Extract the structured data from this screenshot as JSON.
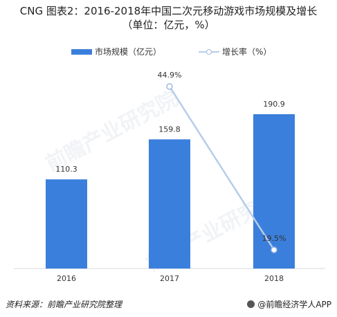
{
  "header": {
    "title": "CNG 图表2：2016-2018年中国二次元移动游戏市场规模及增长",
    "subtitle": "（单位：亿元，%）"
  },
  "legend": {
    "bar_label": "市场规模（亿元）",
    "line_label": "增长率（%）"
  },
  "colors": {
    "bar": "#3b7fdc",
    "line": "#b6ccea",
    "marker": "#9fb9de"
  },
  "chart_data": {
    "type": "bar",
    "categories": [
      "2016",
      "2017",
      "2018"
    ],
    "series": [
      {
        "name": "市场规模（亿元）",
        "type": "bar",
        "values": [
          110.3,
          159.8,
          190.9
        ],
        "labels": [
          "110.3",
          "159.8",
          "190.9"
        ]
      },
      {
        "name": "增长率（%）",
        "type": "line",
        "values": [
          null,
          44.9,
          19.5
        ],
        "labels": [
          "",
          "44.9%",
          "19.5%"
        ]
      }
    ],
    "legend_position": "top"
  },
  "footer": {
    "source": "资料来源：前瞻产业研究院整理",
    "brand": "@前瞻经济学人APP"
  },
  "watermark": {
    "text": "前瞻产业研究院"
  }
}
